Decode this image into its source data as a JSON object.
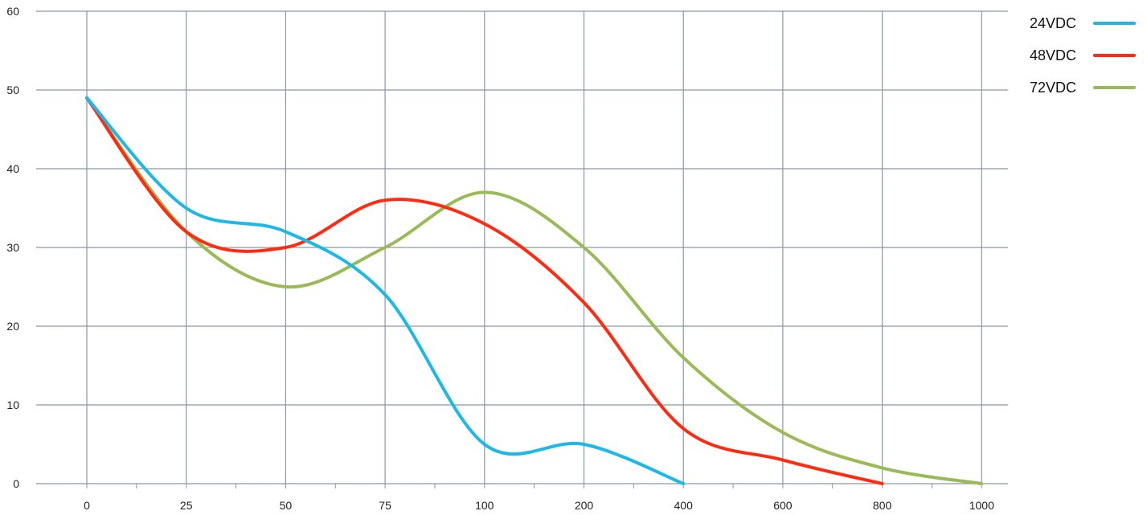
{
  "chart_data": {
    "type": "line",
    "title": "",
    "xlabel": "",
    "ylabel": "",
    "categories": [
      "0",
      "25",
      "50",
      "75",
      "100",
      "200",
      "400",
      "600",
      "800",
      "1000"
    ],
    "ylim": [
      0,
      60
    ],
    "yticks": [
      "0",
      "10",
      "20",
      "30",
      "40",
      "50",
      "60"
    ],
    "grid": true,
    "legend_position": "top-right",
    "series": [
      {
        "name": "24VDC",
        "color": "#1CB8E8",
        "points": [
          [
            0,
            49
          ],
          [
            1,
            35
          ],
          [
            2,
            32
          ],
          [
            3,
            24
          ],
          [
            4,
            5
          ],
          [
            5,
            5
          ],
          [
            6,
            0
          ]
        ]
      },
      {
        "name": "48VDC",
        "color": "#FF2A10",
        "points": [
          [
            0,
            49
          ],
          [
            1,
            32
          ],
          [
            2,
            30
          ],
          [
            3,
            36
          ],
          [
            4,
            33
          ],
          [
            5,
            23
          ],
          [
            6,
            7
          ],
          [
            7,
            3
          ],
          [
            8,
            0
          ]
        ]
      },
      {
        "name": "72VDC",
        "color": "#99BB55",
        "points": [
          [
            0,
            49
          ],
          [
            1,
            32
          ],
          [
            2,
            25
          ],
          [
            3,
            30
          ],
          [
            4,
            37
          ],
          [
            5,
            30
          ],
          [
            6,
            16
          ],
          [
            7,
            6.5
          ],
          [
            8,
            2
          ],
          [
            9,
            0
          ]
        ]
      }
    ]
  }
}
